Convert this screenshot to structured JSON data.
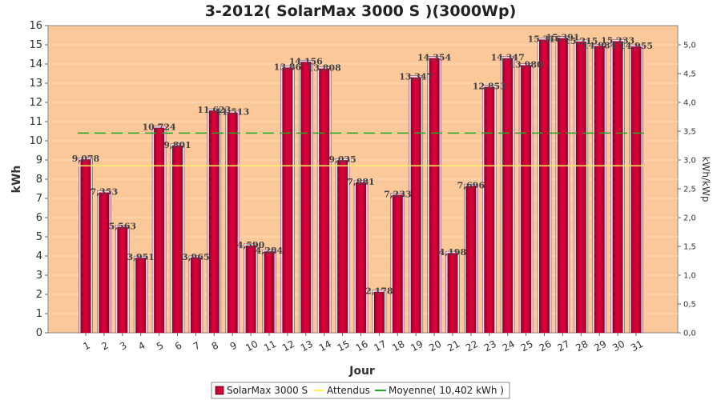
{
  "chart_data": {
    "type": "bar",
    "title": "3-2012( SolarMax 3000 S )(3000Wp)",
    "xlabel": "Jour",
    "ylabel": "kWh",
    "y2label": "kWh/kWp",
    "ylim": [
      0,
      16
    ],
    "y2lim": [
      0,
      5.3333
    ],
    "yticks": [
      "0",
      "1",
      "2",
      "3",
      "4",
      "5",
      "6",
      "7",
      "8",
      "9",
      "10",
      "11",
      "12",
      "13",
      "14",
      "15",
      "16"
    ],
    "y2ticks": [
      "0,0",
      "0,5",
      "1,0",
      "1,5",
      "2,0",
      "2,5",
      "3,0",
      "3,5",
      "4,0",
      "4,5",
      "5,0"
    ],
    "categories": [
      "1",
      "2",
      "3",
      "4",
      "5",
      "6",
      "7",
      "8",
      "9",
      "10",
      "11",
      "12",
      "13",
      "14",
      "15",
      "16",
      "17",
      "18",
      "19",
      "20",
      "21",
      "22",
      "23",
      "24",
      "25",
      "26",
      "27",
      "28",
      "29",
      "30",
      "31"
    ],
    "series": [
      {
        "name": "SolarMax 3000 S",
        "color": "#cc0033",
        "values": [
          9.078,
          7.353,
          5.563,
          3.951,
          10.724,
          9.801,
          3.965,
          11.623,
          11.513,
          4.59,
          4.284,
          13.86,
          14.156,
          13.808,
          9.035,
          7.881,
          2.178,
          7.233,
          13.347,
          14.354,
          4.198,
          7.696,
          12.853,
          14.347,
          13.98,
          15.316,
          15.391,
          15.215,
          14.984,
          15.233,
          14.955
        ],
        "labels": [
          "9,078",
          "7,353",
          "5,563",
          "3,951",
          "10,724",
          "9,801",
          "3,965",
          "11,623",
          "11,513",
          "4,590",
          "4,284",
          "13,86",
          "14,156",
          "13,808",
          "9,035",
          "7,881",
          "2,178",
          "7,233",
          "13,347",
          "14,354",
          "4,198",
          "7,696",
          "12,853",
          "14,347",
          "13,980",
          "15,316",
          "15,391",
          "15,215",
          "14,984",
          "15,233",
          "14,955"
        ]
      }
    ],
    "lines": [
      {
        "name": "Attendus",
        "color": "#ffee66",
        "style": "solid",
        "value": 8.7
      },
      {
        "name": "Moyenne( 10,402 kWh )",
        "color": "#22aa22",
        "style": "dashed",
        "value": 10.402
      }
    ],
    "grid": true,
    "legend_position": "bottom-center",
    "plot_background": "#fbc89a"
  }
}
